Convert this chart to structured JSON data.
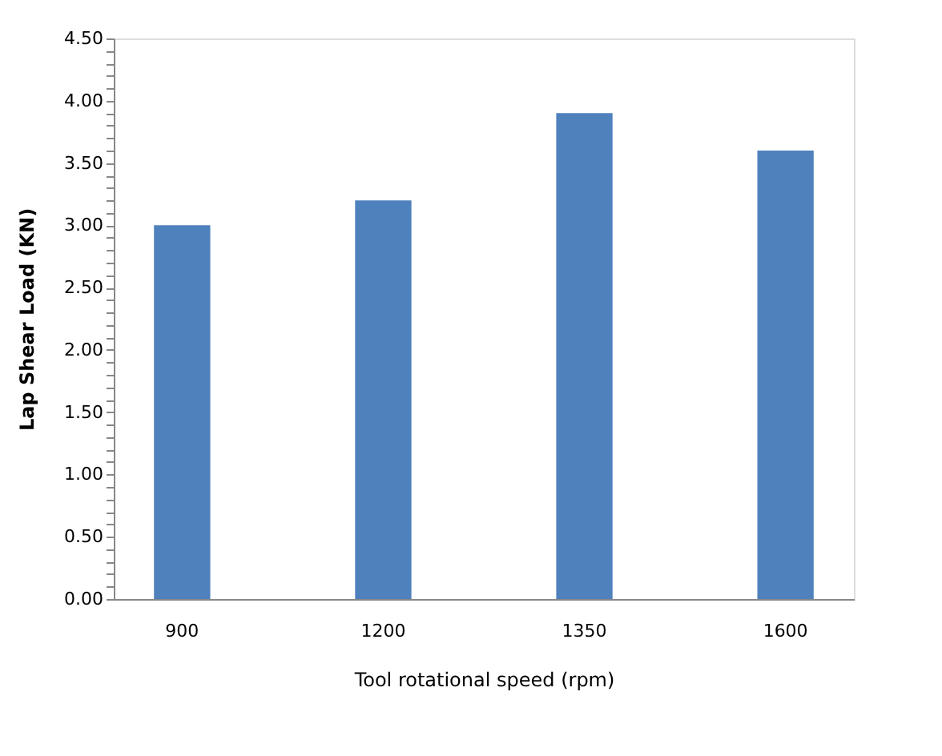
{
  "chart_data": {
    "type": "bar",
    "xlabel": "Tool rotational speed (rpm)",
    "ylabel": "Lap Shear Load (KN)",
    "categories": [
      "900",
      "1200",
      "1350",
      "1600"
    ],
    "series": [
      {
        "color": "#4f81bd",
        "values": [
          3.0,
          3.2,
          3.9,
          3.6
        ]
      }
    ],
    "ylim": [
      0,
      4.5
    ],
    "yticks": [
      {
        "value": 0,
        "label": "0.00"
      },
      {
        "value": 0.1,
        "label": null
      },
      {
        "value": 0.2,
        "label": null
      },
      {
        "value": 0.3,
        "label": null
      },
      {
        "value": 0.4,
        "label": null
      },
      {
        "value": 0.5,
        "label": "0.50"
      },
      {
        "value": 0.6,
        "label": null
      },
      {
        "value": 0.7,
        "label": null
      },
      {
        "value": 0.8,
        "label": null
      },
      {
        "value": 0.9,
        "label": null
      },
      {
        "value": 1.0,
        "label": "1.00"
      },
      {
        "value": 1.1,
        "label": null
      },
      {
        "value": 1.2,
        "label": null
      },
      {
        "value": 1.3,
        "label": null
      },
      {
        "value": 1.4,
        "label": null
      },
      {
        "value": 1.5,
        "label": "1.50"
      },
      {
        "value": 1.6,
        "label": null
      },
      {
        "value": 1.7,
        "label": null
      },
      {
        "value": 1.8,
        "label": null
      },
      {
        "value": 1.9,
        "label": null
      },
      {
        "value": 2.0,
        "label": "2.00"
      },
      {
        "value": 2.1,
        "label": null
      },
      {
        "value": 2.2,
        "label": null
      },
      {
        "value": 2.3,
        "label": null
      },
      {
        "value": 2.4,
        "label": null
      },
      {
        "value": 2.5,
        "label": "2.50"
      },
      {
        "value": 2.6,
        "label": null
      },
      {
        "value": 2.7,
        "label": null
      },
      {
        "value": 2.8,
        "label": null
      },
      {
        "value": 2.9,
        "label": null
      },
      {
        "value": 3.0,
        "label": "3.00"
      },
      {
        "value": 3.1,
        "label": null
      },
      {
        "value": 3.2,
        "label": null
      },
      {
        "value": 3.3,
        "label": null
      },
      {
        "value": 3.4,
        "label": null
      },
      {
        "value": 3.5,
        "label": "3.50"
      },
      {
        "value": 3.6,
        "label": null
      },
      {
        "value": 3.7,
        "label": null
      },
      {
        "value": 3.8,
        "label": null
      },
      {
        "value": 3.9,
        "label": null
      },
      {
        "value": 4.0,
        "label": "4.00"
      },
      {
        "value": 4.1,
        "label": null
      },
      {
        "value": 4.2,
        "label": null
      },
      {
        "value": 4.3,
        "label": null
      },
      {
        "value": 4.4,
        "label": null
      },
      {
        "value": 4.5,
        "label": "4.50"
      }
    ],
    "grid": false,
    "legend": false
  }
}
